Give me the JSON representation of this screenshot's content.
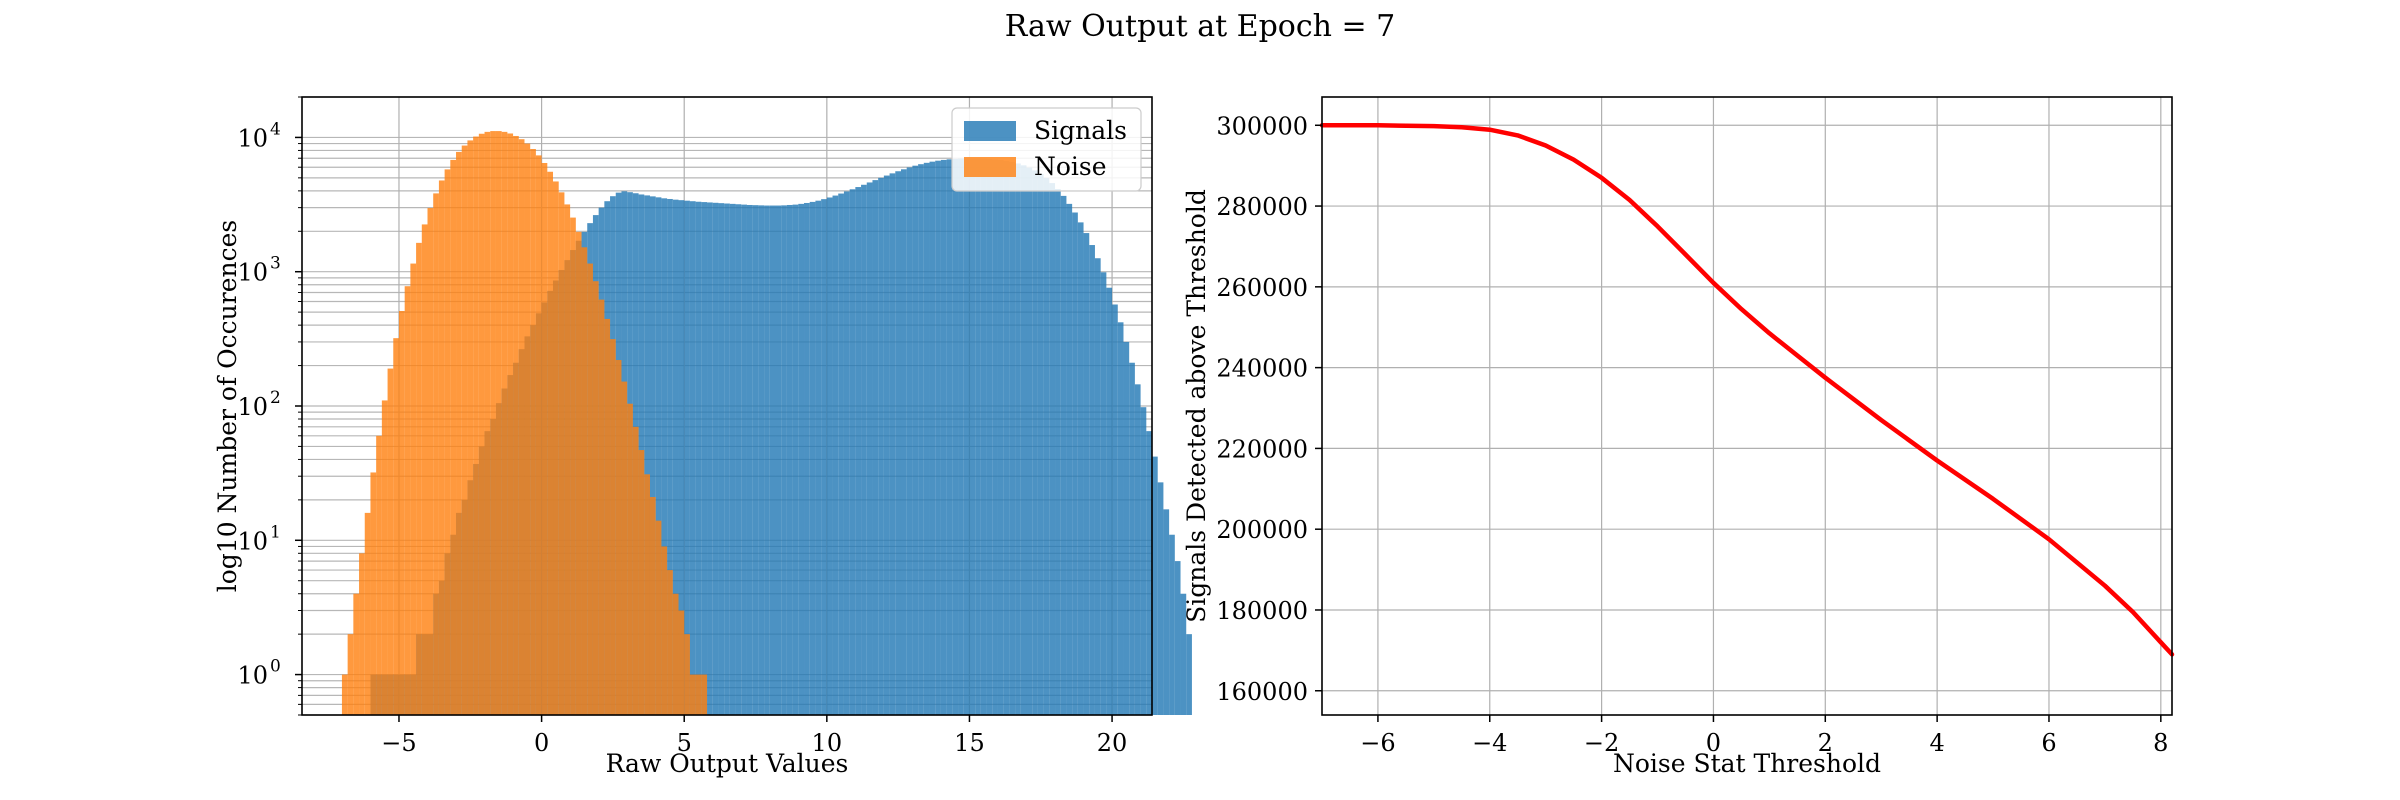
{
  "suptitle": "Raw Output at Epoch = 7",
  "chart_data": [
    {
      "type": "histogram",
      "yscale": "log",
      "xlabel": "Raw Output Values",
      "ylabel": "log10 Number of Occurences",
      "xlim": [
        -8.4,
        21.4
      ],
      "ylim": [
        0.5,
        20000
      ],
      "xticks": [
        -5,
        0,
        5,
        10,
        15,
        20
      ],
      "xtick_labels": [
        "−5",
        "0",
        "5",
        "10",
        "15",
        "20"
      ],
      "yticks": [
        1,
        10,
        100,
        1000,
        10000
      ],
      "ytick_labels": [
        "10",
        "10",
        "10",
        "10",
        "10"
      ],
      "ytick_exponents": [
        "0",
        "1",
        "2",
        "3",
        "4"
      ],
      "grid": true,
      "legend": "top-right",
      "series": [
        {
          "name": "Signals",
          "color": "#1f77b4",
          "alpha": 0.8,
          "x_start": -6.0,
          "bin_width": 0.2,
          "counts": [
            1,
            1,
            1,
            1,
            1,
            1,
            1,
            1,
            2,
            2,
            2,
            4,
            5,
            8,
            11,
            16,
            20,
            28,
            37,
            50,
            65,
            80,
            105,
            135,
            170,
            210,
            265,
            330,
            400,
            490,
            590,
            720,
            860,
            1030,
            1220,
            1450,
            1700,
            1980,
            2300,
            2640,
            3000,
            3350,
            3650,
            3880,
            3970,
            3910,
            3840,
            3760,
            3700,
            3640,
            3580,
            3520,
            3480,
            3440,
            3410,
            3380,
            3350,
            3320,
            3300,
            3280,
            3260,
            3240,
            3220,
            3200,
            3180,
            3160,
            3140,
            3130,
            3120,
            3110,
            3110,
            3110,
            3120,
            3140,
            3160,
            3200,
            3250,
            3310,
            3380,
            3470,
            3570,
            3690,
            3820,
            3960,
            4110,
            4270,
            4440,
            4620,
            4810,
            5000,
            5200,
            5400,
            5600,
            5790,
            5980,
            6160,
            6320,
            6470,
            6600,
            6710,
            6800,
            6870,
            6920,
            6950,
            6960,
            6960,
            6950,
            6930,
            6900,
            6850,
            6780,
            6680,
            6560,
            6400,
            6200,
            5960,
            5680,
            5350,
            4980,
            4570,
            4130,
            3670,
            3200,
            2760,
            2330,
            1940,
            1580,
            1260,
            990,
            760,
            570,
            420,
            300,
            210,
            145,
            98,
            65,
            42,
            27,
            17,
            11,
            7,
            4,
            2
          ],
          "bins_note": "",
          "bin_count_label": ""
        },
        {
          "name": "Noise",
          "color": "#ff7f0e",
          "alpha": 0.8,
          "x_start": -7.0,
          "bin_width": 0.2,
          "counts": [
            1,
            2,
            4,
            8,
            16,
            32,
            60,
            110,
            190,
            320,
            510,
            780,
            1150,
            1640,
            2250,
            2980,
            3830,
            4780,
            5780,
            6800,
            7800,
            8700,
            9500,
            10150,
            10650,
            11000,
            11150,
            11150,
            11000,
            10700,
            10250,
            9700,
            9000,
            8200,
            7350,
            6450,
            5550,
            4700,
            3900,
            3170,
            2530,
            1980,
            1520,
            1150,
            850,
            620,
            445,
            315,
            220,
            152,
            104,
            70,
            47,
            31,
            21,
            14,
            9,
            6,
            4,
            3,
            2,
            1,
            1,
            1
          ],
          "bins_note": "",
          "bin_count_label": ""
        }
      ]
    },
    {
      "type": "line",
      "xlabel": "Noise Stat Threshold",
      "ylabel": "Signals Detected above Threshold",
      "xlim": [
        -7,
        8.2
      ],
      "ylim": [
        154000,
        307000
      ],
      "xticks": [
        -6,
        -4,
        -2,
        0,
        2,
        4,
        6,
        8
      ],
      "xtick_labels": [
        "−6",
        "−4",
        "−2",
        "0",
        "2",
        "4",
        "6",
        "8"
      ],
      "yticks": [
        160000,
        180000,
        200000,
        220000,
        240000,
        260000,
        280000,
        300000
      ],
      "ytick_labels": [
        "160000",
        "180000",
        "200000",
        "220000",
        "240000",
        "260000",
        "280000",
        "300000"
      ],
      "grid": true,
      "series": [
        {
          "name": "",
          "color": "#ff0000",
          "x": [
            -7,
            -6,
            -5,
            -4.5,
            -4,
            -3.5,
            -3,
            -2.5,
            -2,
            -1.5,
            -1,
            -0.5,
            0,
            0.5,
            1,
            1.5,
            2,
            3,
            4,
            5,
            6,
            7,
            7.5,
            8,
            8.2
          ],
          "y": [
            300000,
            300000,
            299800,
            299500,
            298900,
            297500,
            295000,
            291500,
            287000,
            281500,
            275000,
            268000,
            261000,
            254500,
            248500,
            243000,
            237500,
            227000,
            217000,
            207500,
            197500,
            186000,
            179500,
            172000,
            169000
          ]
        }
      ]
    }
  ]
}
